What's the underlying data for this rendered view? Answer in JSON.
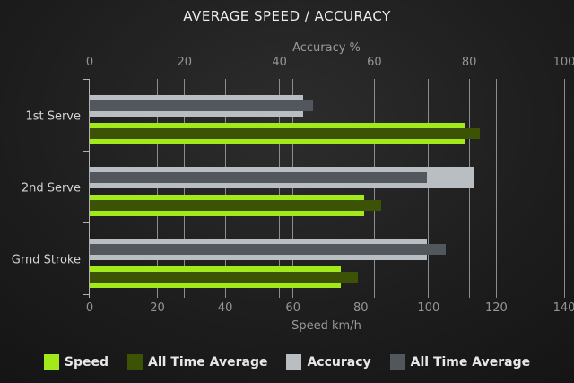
{
  "title": "AVERAGE SPEED / ACCURACY",
  "colors": {
    "speed": "#a4ea1a",
    "speed_all_time": "#3c5306",
    "accuracy": "#b9bec3",
    "accuracy_all_time": "#51575d",
    "gridline": "#8b8e90",
    "tick_label": "#959595",
    "axis_title": "#9a9a9a",
    "category_label": "#d2d2d2",
    "title_text": "#ededed",
    "legend_text": "#e8e8e8"
  },
  "chart_data": {
    "type": "bar",
    "orientation": "horizontal",
    "title": "AVERAGE SPEED / ACCURACY",
    "categories": [
      "1st Serve",
      "2nd Serve",
      "Grnd Stroke"
    ],
    "axes": {
      "top": {
        "label": "Accuracy %",
        "range": [
          0,
          100
        ],
        "ticks": [
          0,
          20,
          40,
          60,
          80,
          100
        ]
      },
      "bottom": {
        "label": "Speed km/h",
        "range": [
          0,
          140
        ],
        "ticks": [
          0,
          20,
          40,
          60,
          80,
          100,
          120,
          140
        ]
      }
    },
    "series": [
      {
        "name": "Speed",
        "axis": "bottom",
        "style": "outer",
        "color": "#a4ea1a",
        "values": [
          111,
          81,
          74
        ]
      },
      {
        "name": "All Time Average",
        "axis": "bottom",
        "style": "inner",
        "color": "#3c5306",
        "values": [
          115,
          86,
          79
        ]
      },
      {
        "name": "Accuracy",
        "axis": "top",
        "style": "outer",
        "color": "#b9bec3",
        "values": [
          45,
          81,
          71
        ]
      },
      {
        "name": "All Time Average",
        "axis": "top",
        "style": "inner",
        "color": "#51575d",
        "values": [
          47,
          71,
          75
        ]
      }
    ],
    "grid": true,
    "legend_position": "bottom"
  },
  "legend": {
    "items": [
      {
        "label": "Speed",
        "color": "#a4ea1a"
      },
      {
        "label": "All Time Average",
        "color": "#3c5306"
      },
      {
        "label": "Accuracy",
        "color": "#b9bec3"
      },
      {
        "label": "All Time Average",
        "color": "#51575d"
      }
    ]
  }
}
